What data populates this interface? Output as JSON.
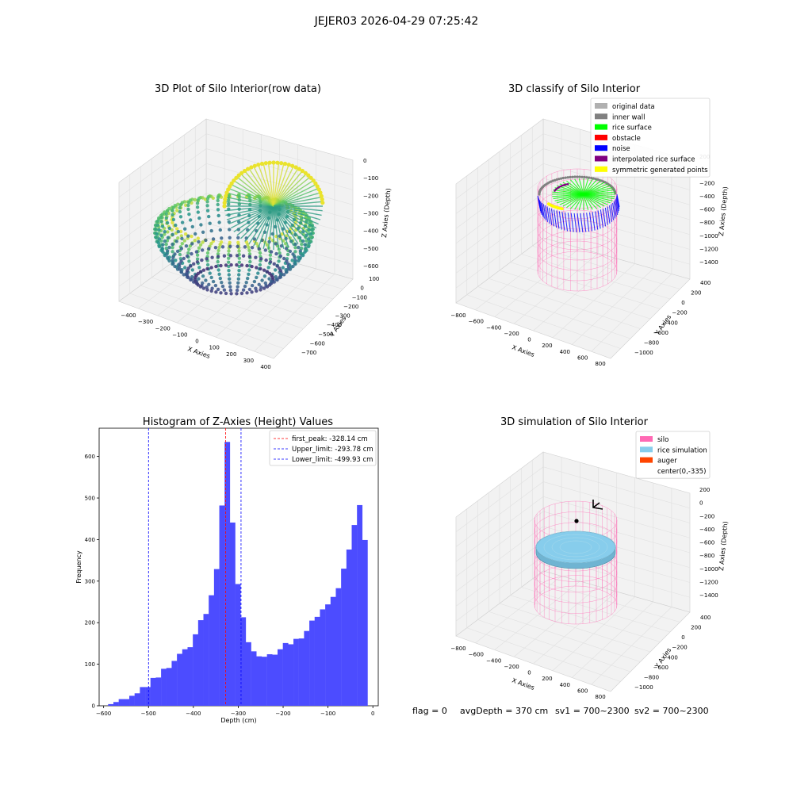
{
  "suptitle": "JEJER03 2026-04-29 07:25:42",
  "status": {
    "flag": "flag = 0",
    "avg_depth": "avgDepth = 370 cm",
    "sv1": "sv1 = 700~2300",
    "sv2": "sv2 = 700~2300"
  },
  "colors": {
    "hist": "#4c4cff",
    "peak_line": "#ff0000",
    "limit_line": "#0000ff",
    "silo": "#ff69b4",
    "rice": "#87cdec",
    "auger": "#ff4500",
    "wall_gray": "#808080",
    "orig_gray": "#b0b0b0",
    "surface_green": "#00ff00",
    "noise_blue": "#0000ff",
    "interp_purple": "#800080",
    "sym_yellow": "#ffff00"
  },
  "chart_data": [
    {
      "type": "scatter",
      "title": "3D Plot of Silo Interior(row data)",
      "xlabel": "X Axies",
      "ylabel": "Y Axies",
      "zlabel": "Z Axies (Depth)",
      "x_ticks": [
        "−400",
        "−300",
        "−200",
        "−100",
        "0",
        "100",
        "200",
        "300",
        "400"
      ],
      "y_ticks": [
        "100",
        "0",
        "−100",
        "−200",
        "−300",
        "−400",
        "−500",
        "−600",
        "−700"
      ],
      "z_ticks": [
        "0",
        "−100",
        "−200",
        "−300",
        "−400",
        "−500",
        "−600"
      ],
      "colormap": "viridis"
    },
    {
      "type": "scatter",
      "title": "3D classify of Silo Interior",
      "xlabel": "X Axies",
      "ylabel": "Y Axies",
      "zlabel": "Z Axies (Depth)",
      "x_ticks": [
        "−800",
        "−600",
        "−400",
        "−200",
        "0",
        "200",
        "400",
        "600",
        "800"
      ],
      "y_ticks": [
        "400",
        "200",
        "0",
        "−200",
        "−400",
        "−600",
        "−800",
        "−1000"
      ],
      "z_ticks": [
        "200",
        "0",
        "−200",
        "−400",
        "−600",
        "−800",
        "−1000",
        "−1200",
        "−1400"
      ],
      "legend": [
        {
          "label": "original data",
          "color": "#b0b0b0"
        },
        {
          "label": "inner wall",
          "color": "#808080"
        },
        {
          "label": "rice surface",
          "color": "#00ff00"
        },
        {
          "label": "obstacle",
          "color": "#ff0000"
        },
        {
          "label": "noise",
          "color": "#0000ff"
        },
        {
          "label": "interpolated rice surface",
          "color": "#800080"
        },
        {
          "label": "symmetric generated points",
          "color": "#ffff00"
        }
      ]
    },
    {
      "type": "bar",
      "title": "Histogram of Z-Axies (Height) Values",
      "xlabel": "Depth (cm)",
      "ylabel": "Frequency",
      "xlim": [
        -610,
        12
      ],
      "ylim": [
        0,
        668
      ],
      "x_ticks": [
        -600,
        -500,
        -400,
        -300,
        -200,
        -100,
        0
      ],
      "x_tick_labels": [
        "−600",
        "−500",
        "−400",
        "−300",
        "−200",
        "−100",
        "0"
      ],
      "y_ticks": [
        0,
        100,
        200,
        300,
        400,
        500,
        600
      ],
      "bin_start": -590,
      "bin_width": 11.8,
      "values": [
        4,
        9,
        16,
        16,
        24,
        30,
        45,
        45,
        67,
        68,
        89,
        91,
        108,
        125,
        136,
        141,
        172,
        206,
        221,
        266,
        329,
        482,
        635,
        441,
        293,
        213,
        153,
        131,
        119,
        118,
        124,
        123,
        136,
        151,
        148,
        161,
        162,
        180,
        205,
        214,
        232,
        244,
        262,
        283,
        330,
        376,
        435,
        483,
        399
      ],
      "vlines": [
        {
          "label": "first_peak: -328.14 cm",
          "x": -328.14,
          "color": "#ff0000"
        },
        {
          "label": "Upper_limit: -293.78 cm",
          "x": -293.78,
          "color": "#0000ff"
        },
        {
          "label": "Lower_limit: -499.93 cm",
          "x": -499.93,
          "color": "#0000ff"
        }
      ]
    },
    {
      "type": "scatter",
      "title": "3D simulation of Silo Interior",
      "xlabel": "X Axies",
      "ylabel": "Y Axies",
      "zlabel": "Z Axies (Depth)",
      "x_ticks": [
        "−800",
        "−600",
        "−400",
        "−200",
        "0",
        "200",
        "400",
        "600",
        "800"
      ],
      "y_ticks": [
        "400",
        "200",
        "0",
        "−200",
        "−400",
        "−600",
        "−800",
        "−1000"
      ],
      "z_ticks": [
        "200",
        "0",
        "−200",
        "−400",
        "−600",
        "−800",
        "−1000",
        "−1200",
        "−1400"
      ],
      "legend": [
        {
          "label": "silo",
          "color": "#ff69b4"
        },
        {
          "label": "rice simulation",
          "color": "#87cdec"
        },
        {
          "label": "auger",
          "color": "#ff4500"
        },
        {
          "label": "center(0,-335)",
          "color": ""
        }
      ]
    }
  ]
}
